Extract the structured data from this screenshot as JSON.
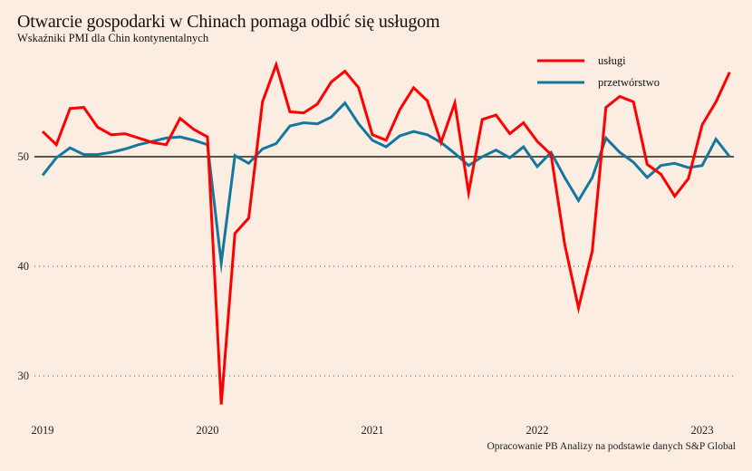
{
  "title": "Otwarcie gospodarki w Chinach pomaga odbić się usługom",
  "subtitle": "Wskaźniki PMI dla Chin kontynentalnych",
  "source": "Opracowanie PB Analizy na podstawie danych S&P Global",
  "chart_data": {
    "type": "line",
    "title": "Otwarcie gospodarki w Chinach pomaga odbić się usługom",
    "subtitle": "Wskaźniki PMI dla Chin kontynentalnych",
    "xlabel": "",
    "ylabel": "",
    "x_start": "2019-01",
    "x_frequency": "monthly",
    "x_ticks": [
      "2019",
      "2020",
      "2021",
      "2022",
      "2023"
    ],
    "y_ticks": [
      30,
      40,
      50
    ],
    "ylim": [
      25,
      60
    ],
    "reference_line": 50,
    "grid": "dotted at 30 and 40",
    "legend_position": "top-right",
    "series": [
      {
        "name": "usługi",
        "color": "#ff0000",
        "values": [
          52.3,
          51.1,
          54.4,
          54.5,
          52.7,
          52.0,
          52.1,
          51.7,
          51.3,
          51.1,
          53.5,
          52.5,
          51.8,
          27.4,
          43.0,
          44.4,
          55.0,
          58.4,
          54.1,
          54.0,
          54.8,
          56.8,
          57.8,
          56.3,
          52.0,
          51.5,
          54.3,
          56.3,
          55.1,
          51.3,
          54.9,
          46.7,
          53.4,
          53.8,
          52.1,
          53.1,
          51.4,
          50.2,
          42.0,
          36.2,
          41.4,
          54.5,
          55.5,
          55.0,
          49.3,
          48.4,
          46.4,
          48.0,
          52.9,
          55.0,
          57.7
        ]
      },
      {
        "name": "przetwórstwo",
        "color": "#13789e",
        "values": [
          48.3,
          49.9,
          50.8,
          50.2,
          50.2,
          50.4,
          50.7,
          51.1,
          51.4,
          51.7,
          51.8,
          51.5,
          51.1,
          40.3,
          50.1,
          49.4,
          50.7,
          51.2,
          52.8,
          53.1,
          53.0,
          53.6,
          54.9,
          53.0,
          51.5,
          50.9,
          51.9,
          52.3,
          52.0,
          51.3,
          50.3,
          49.2,
          50.0,
          50.6,
          49.9,
          50.9,
          49.1,
          50.4,
          48.1,
          46.0,
          48.1,
          51.7,
          50.4,
          49.5,
          48.1,
          49.2,
          49.4,
          49.0,
          49.2,
          51.6,
          50.0
        ]
      }
    ]
  }
}
